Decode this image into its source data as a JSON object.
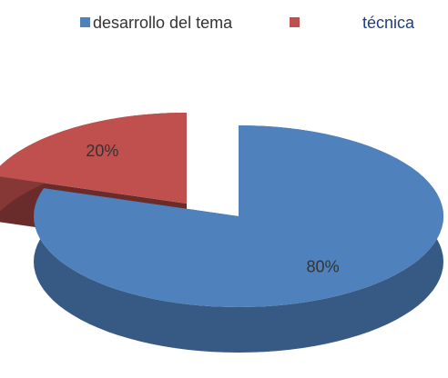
{
  "chart_data": {
    "type": "pie",
    "categories": [
      "desarrollo del tema",
      "técnica"
    ],
    "values": [
      80,
      20
    ],
    "value_labels": [
      "80%",
      "20%"
    ],
    "colors": [
      "#4f81bd",
      "#c0504d"
    ]
  }
}
